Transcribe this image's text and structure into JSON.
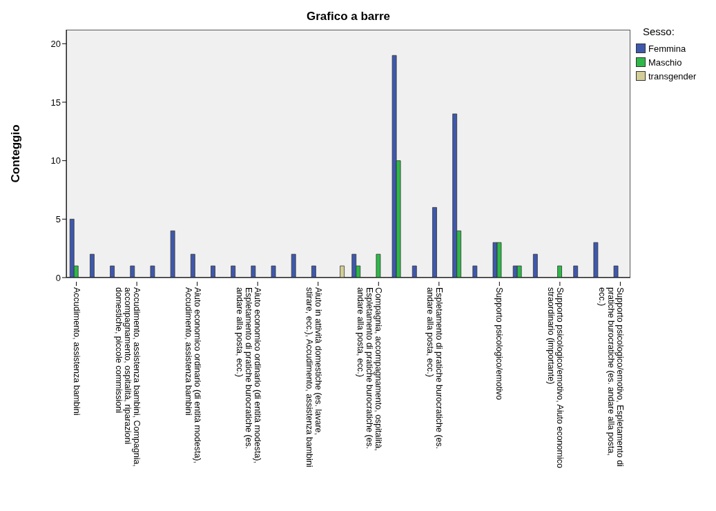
{
  "chart_data": {
    "type": "bar",
    "title": "Grafico a barre",
    "ylabel": "Conteggio",
    "legend_title": "Sesso:",
    "categories": [
      "Accudimento, assistenza bambini",
      null,
      null,
      "Accudimento, assistenza bambini, Compagnia, accompagnamento, ospitalità, riparazioni domestiche, piccole commissioni",
      null,
      null,
      "Aiuto economico ordinario (di entità modesta), Accudimento, assistenza bambini",
      null,
      null,
      "Aiuto economico ordinario (di entità modesta), Espletamento di pratiche burocratiche (es. andare alla posta, ecc.)",
      null,
      null,
      "Aiuto in attività domestiche (es. lavare, stirare, ecc.), Accudimento, assistenza bambini",
      null,
      null,
      "Compagnia, accompagnamento, ospitalità, Espletamento di pratiche burocratiche (es. andare alla posta, ecc.)",
      null,
      null,
      "Espletamento di pratiche burocratiche (es. andare alla posta, ecc.)",
      null,
      null,
      "Supporto psicologico/emotivo",
      null,
      null,
      "Supporto psicologico/emotivo, Aiuto economico straordinario (importante)",
      null,
      null,
      "Supporto psicologico/emotivo, Espletamento di pratiche burocratiche (es. andare alla posta, ecc.)"
    ],
    "series": [
      {
        "name": "Femmina",
        "color": "#3e58ac",
        "values": [
          5,
          2,
          1,
          1,
          1,
          4,
          2,
          1,
          1,
          1,
          1,
          2,
          1,
          0,
          2,
          0,
          19,
          1,
          6,
          14,
          1,
          3,
          1,
          2,
          0,
          1,
          3,
          1
        ]
      },
      {
        "name": "Maschio",
        "color": "#2eb848",
        "values": [
          1,
          0,
          0,
          0,
          0,
          0,
          0,
          0,
          0,
          0,
          0,
          0,
          0,
          0,
          1,
          2,
          10,
          0,
          0,
          4,
          0,
          3,
          1,
          0,
          1,
          0,
          0,
          0
        ]
      },
      {
        "name": "transgender",
        "color": "#d3ce97",
        "values": [
          0,
          0,
          0,
          0,
          0,
          0,
          0,
          0,
          0,
          0,
          0,
          0,
          0,
          1,
          0,
          0,
          0,
          0,
          0,
          0,
          0,
          0,
          0,
          0,
          0,
          0,
          0,
          0
        ]
      }
    ],
    "ylim": [
      0,
      21.2
    ],
    "yticks": [
      0,
      5,
      10,
      15,
      20
    ],
    "legend": "top right"
  }
}
